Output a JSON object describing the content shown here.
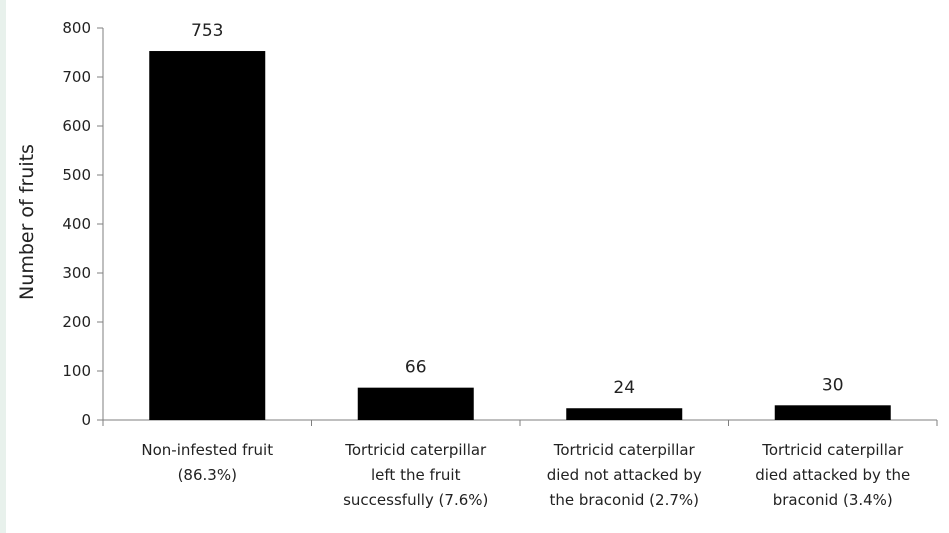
{
  "chart_data": {
    "type": "bar",
    "title": "",
    "xlabel": "",
    "ylabel": "Number of fruits",
    "ylim": [
      0,
      800
    ],
    "yticks": [
      0,
      100,
      200,
      300,
      400,
      500,
      600,
      700,
      800
    ],
    "grid": false,
    "legend": "none",
    "bar_color": "#000000",
    "categories": [
      [
        "Non-infested fruit",
        "(86.3%)"
      ],
      [
        "Tortricid caterpillar",
        "left the fruit",
        "successfully (7.6%)"
      ],
      [
        "Tortricid caterpillar",
        "died not attacked by",
        "the braconid (2.7%)"
      ],
      [
        "Tortricid caterpillar",
        "died attacked by the",
        "braconid (3.4%)"
      ]
    ],
    "values": [
      753,
      66,
      24,
      30
    ],
    "data_labels": [
      "753",
      "66",
      "24",
      "30"
    ]
  }
}
